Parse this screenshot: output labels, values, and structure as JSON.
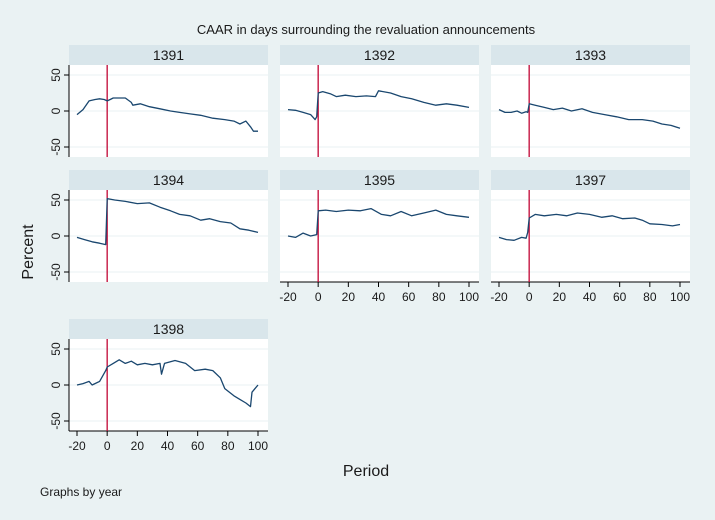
{
  "chart_data": {
    "type": "line",
    "title": "CAAR in days surrounding the revaluation announcements",
    "xlabel": "Period",
    "ylabel": "Percent",
    "note": "Graphs by year",
    "xlim": [
      -20,
      100
    ],
    "ylim": [
      -50,
      50
    ],
    "xticks": [
      -20,
      0,
      20,
      40,
      60,
      80,
      100
    ],
    "yticks": [
      -50,
      0,
      50
    ],
    "event_line_x": 0,
    "grid": true,
    "colors": {
      "background": "#eaf2f3",
      "plot_bg": "#ffffff",
      "header_bg": "#d9e6eb",
      "line": "#1a476f",
      "event_line": "#c10534",
      "grid": "#eaf2f3"
    },
    "panels": [
      {
        "year": "1391",
        "x": [
          -20,
          -16,
          -12,
          -8,
          -5,
          -2,
          0,
          2,
          4,
          8,
          12,
          16,
          17,
          22,
          28,
          35,
          42,
          48,
          55,
          62,
          70,
          78,
          84,
          88,
          92,
          95,
          97,
          100
        ],
        "y": [
          -5,
          2,
          14,
          16,
          17,
          16,
          14,
          16,
          18,
          18,
          18,
          12,
          8,
          10,
          6,
          3,
          0,
          -2,
          -4,
          -6,
          -10,
          -12,
          -14,
          -18,
          -14,
          -22,
          -28,
          -28
        ]
      },
      {
        "year": "1392",
        "x": [
          -20,
          -15,
          -10,
          -5,
          -2,
          -1,
          0,
          3,
          8,
          12,
          18,
          25,
          32,
          38,
          40,
          48,
          55,
          62,
          70,
          78,
          85,
          92,
          100
        ],
        "y": [
          2,
          1,
          -2,
          -5,
          -12,
          -8,
          25,
          27,
          24,
          20,
          22,
          20,
          21,
          20,
          28,
          25,
          20,
          17,
          12,
          8,
          10,
          8,
          5
        ]
      },
      {
        "year": "1393",
        "x": [
          -20,
          -16,
          -12,
          -8,
          -5,
          -2,
          -1,
          0,
          4,
          10,
          16,
          22,
          28,
          35,
          42,
          50,
          58,
          66,
          75,
          82,
          88,
          94,
          100
        ],
        "y": [
          2,
          -2,
          -2,
          0,
          -3,
          -1,
          -2,
          10,
          8,
          5,
          2,
          4,
          0,
          3,
          -2,
          -5,
          -8,
          -12,
          -12,
          -14,
          -18,
          -20,
          -24
        ]
      },
      {
        "year": "1394",
        "x": [
          -20,
          -15,
          -10,
          -5,
          -1,
          0,
          5,
          12,
          20,
          28,
          35,
          42,
          48,
          55,
          62,
          68,
          75,
          82,
          88,
          94,
          100
        ],
        "y": [
          -2,
          -5,
          -8,
          -10,
          -12,
          52,
          50,
          48,
          45,
          46,
          40,
          35,
          30,
          28,
          22,
          24,
          20,
          18,
          10,
          8,
          5
        ]
      },
      {
        "year": "1395",
        "x": [
          -20,
          -15,
          -10,
          -5,
          -1,
          0,
          5,
          12,
          20,
          28,
          35,
          42,
          48,
          55,
          62,
          70,
          78,
          85,
          92,
          100
        ],
        "y": [
          0,
          -2,
          4,
          0,
          2,
          35,
          36,
          34,
          36,
          35,
          38,
          30,
          28,
          34,
          28,
          32,
          36,
          30,
          28,
          26
        ]
      },
      {
        "year": "1397",
        "x": [
          -20,
          -15,
          -10,
          -5,
          -2,
          -1,
          0,
          4,
          10,
          18,
          25,
          32,
          40,
          48,
          55,
          62,
          70,
          75,
          80,
          88,
          95,
          100
        ],
        "y": [
          -2,
          -5,
          -6,
          -2,
          -3,
          5,
          25,
          30,
          28,
          30,
          28,
          32,
          30,
          26,
          28,
          24,
          25,
          22,
          17,
          16,
          14,
          16
        ]
      },
      {
        "year": "1398",
        "x": [
          -20,
          -16,
          -12,
          -10,
          -5,
          -1,
          0,
          4,
          8,
          12,
          16,
          20,
          25,
          30,
          35,
          36,
          38,
          45,
          52,
          58,
          65,
          70,
          75,
          78,
          84,
          88,
          92,
          95,
          96,
          98,
          100
        ],
        "y": [
          0,
          2,
          5,
          0,
          5,
          20,
          25,
          30,
          35,
          30,
          33,
          28,
          30,
          28,
          30,
          15,
          30,
          34,
          30,
          20,
          22,
          20,
          10,
          -5,
          -15,
          -20,
          -25,
          -30,
          -10,
          -5,
          0
        ]
      }
    ]
  }
}
